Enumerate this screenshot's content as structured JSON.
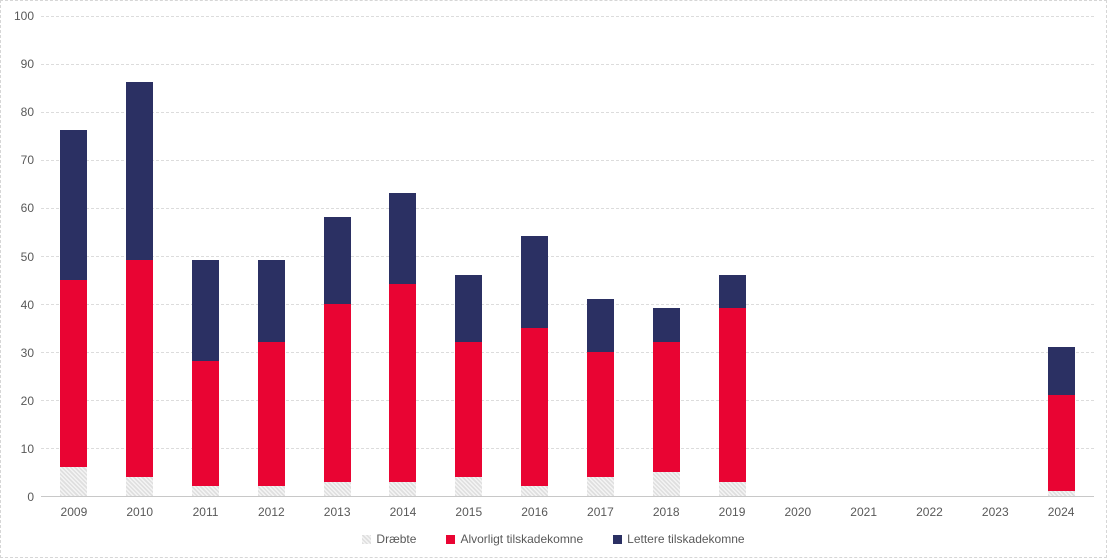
{
  "chart_data": {
    "type": "bar",
    "stacked": true,
    "title": "",
    "xlabel": "",
    "ylabel": "",
    "categories": [
      "2009",
      "2010",
      "2011",
      "2012",
      "2013",
      "2014",
      "2015",
      "2016",
      "2017",
      "2018",
      "2019",
      "2020",
      "2021",
      "2022",
      "2023",
      "2024"
    ],
    "series": [
      {
        "name": "Dræbte",
        "color": "#e3e3e3",
        "pattern": "light-dot-weave",
        "values": [
          6,
          4,
          2,
          2,
          3,
          3,
          4,
          2,
          4,
          5,
          3,
          0,
          0,
          0,
          0,
          1
        ]
      },
      {
        "name": "Alvorligt tilskadekomne",
        "color": "#e90433",
        "values": [
          39,
          45,
          26,
          30,
          37,
          41,
          28,
          33,
          26,
          27,
          36,
          0,
          0,
          0,
          0,
          20
        ]
      },
      {
        "name": "Lettere tilskadekomne",
        "color": "#2b3063",
        "values": [
          31,
          37,
          21,
          17,
          18,
          19,
          14,
          19,
          11,
          7,
          7,
          0,
          0,
          0,
          0,
          10
        ]
      }
    ],
    "stack_totals": [
      76,
      86,
      49,
      49,
      58,
      63,
      46,
      54,
      41,
      39,
      46,
      0,
      0,
      0,
      0,
      31
    ],
    "ylim": [
      0,
      100
    ],
    "y_tick_step": 10,
    "y_tick_labels": [
      "0",
      "10",
      "20",
      "30",
      "40",
      "50",
      "60",
      "70",
      "80",
      "90",
      "100"
    ],
    "grid": "horizontal-dashed",
    "legend_position": "bottom-center",
    "colors": {
      "grid": "#dcdcdc",
      "axis": "#c8c8c8",
      "tick_label": "#595959",
      "background": "#ffffff",
      "border": "#d6d6d6"
    }
  }
}
